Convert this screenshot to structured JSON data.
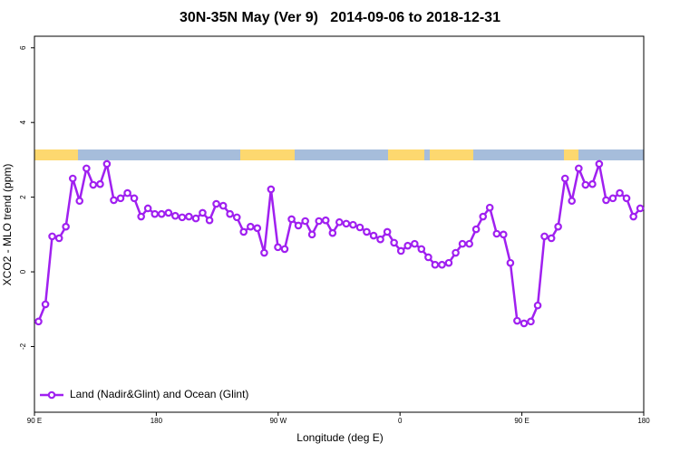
{
  "chart_data": {
    "type": "line",
    "title": "30N-35N May (Ver 9)   2014-09-06 to 2018-12-31",
    "xlabel": "Longitude (deg E)",
    "ylabel": "XCO2 - MLO trend (ppm)",
    "xlim": [
      90,
      540
    ],
    "xticks": [
      {
        "value": 90,
        "label": "90 E"
      },
      180,
      {
        "value": 270,
        "label": "90 W"
      },
      {
        "value": 360,
        "label": "0"
      },
      {
        "value": 450,
        "label": "90 E"
      },
      {
        "value": 540,
        "label": "180"
      }
    ],
    "ylim": [
      -3.76,
      6.31
    ],
    "yticks": [
      -2,
      0,
      2,
      4,
      6
    ],
    "legend": "bottomleft",
    "x": [
      93.0,
      98.1,
      103.1,
      108.2,
      113.2,
      118.3,
      123.3,
      128.4,
      133.4,
      138.5,
      143.5,
      148.6,
      153.6,
      158.7,
      163.7,
      168.8,
      173.8,
      178.9,
      183.9,
      189.0,
      194.0,
      199.1,
      204.1,
      209.2,
      214.2,
      219.3,
      224.3,
      229.4,
      234.4,
      239.5,
      244.5,
      249.6,
      254.6,
      259.7,
      264.7,
      269.8,
      274.8,
      279.9,
      284.9,
      290.0,
      295.0,
      300.1,
      305.1,
      310.2,
      315.2,
      320.3,
      325.3,
      330.4,
      335.4,
      340.5,
      345.5,
      350.6,
      355.6,
      360.7,
      365.7,
      370.8,
      375.8,
      380.9,
      385.9,
      391.0,
      396.0,
      401.1,
      406.1,
      411.2,
      416.2,
      421.3,
      426.3,
      431.4,
      436.4,
      441.5,
      446.5,
      451.6,
      456.6,
      461.7,
      466.7,
      471.8,
      476.8,
      481.9,
      486.9,
      492.0,
      497.0,
      502.1,
      507.1,
      512.2,
      517.2,
      522.3,
      527.3,
      532.4,
      537.4
    ],
    "series": [
      {
        "name": "Land (Nadir&Glint) and Ocean (Glint)",
        "color": "#a020f0",
        "values": [
          -1.33,
          -0.87,
          0.95,
          0.9,
          1.21,
          2.5,
          1.9,
          2.77,
          2.33,
          2.35,
          2.89,
          1.92,
          1.97,
          2.11,
          1.97,
          1.48,
          1.7,
          1.55,
          1.55,
          1.58,
          1.5,
          1.46,
          1.48,
          1.43,
          1.58,
          1.38,
          1.82,
          1.77,
          1.55,
          1.46,
          1.07,
          1.21,
          1.17,
          0.51,
          2.21,
          0.66,
          0.61,
          1.41,
          1.24,
          1.36,
          1.0,
          1.36,
          1.38,
          1.04,
          1.33,
          1.29,
          1.26,
          1.19,
          1.07,
          0.97,
          0.87,
          1.07,
          0.78,
          0.56,
          0.7,
          0.75,
          0.61,
          0.39,
          0.19,
          0.19,
          0.24,
          0.51,
          0.75,
          0.75,
          1.14,
          1.48,
          1.72,
          1.02,
          1.0,
          0.24,
          -1.31,
          -1.38,
          -1.33,
          -0.9,
          0.95,
          0.9,
          1.21,
          2.5,
          1.9,
          2.77,
          2.33,
          2.35,
          2.89,
          1.92,
          1.97,
          2.11,
          1.97,
          1.48,
          1.7
        ]
      }
    ]
  }
}
